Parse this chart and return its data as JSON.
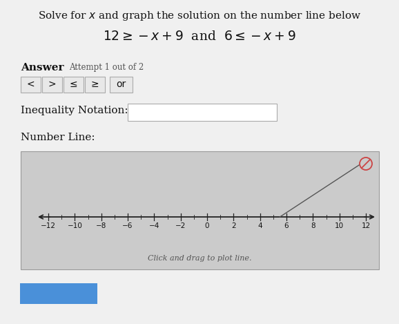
{
  "page_bg": "#f0f0f0",
  "title_text": "Solve for $x$ and graph the solution on the number line below",
  "equation_text": "$12 \\geq -x+9$  and  $6 \\leq -x+9$",
  "answer_label": "Answer",
  "attempt_text": "Attempt 1 out of 2",
  "buttons": [
    "<",
    ">",
    "≤",
    "≥",
    "or"
  ],
  "inequality_label": "Inequality Notation:",
  "number_line_label": "Number Line:",
  "number_line_range": [
    -12,
    12
  ],
  "tick_labels": [
    -12,
    -10,
    -8,
    -6,
    -4,
    -2,
    0,
    2,
    4,
    6,
    8,
    10,
    12
  ],
  "click_drag_text": "Click and drag to plot line.",
  "numberline_box_bg": "#cbcbcb",
  "arrow_color": "#222222",
  "button_bg": "#e8e8e8",
  "button_border": "#aaaaaa",
  "inequality_box_bg": "#ffffff",
  "inequality_box_border": "#aaaaaa",
  "cancel_icon_color": "#cc4444",
  "text_color": "#111111",
  "subtext_color": "#555555"
}
